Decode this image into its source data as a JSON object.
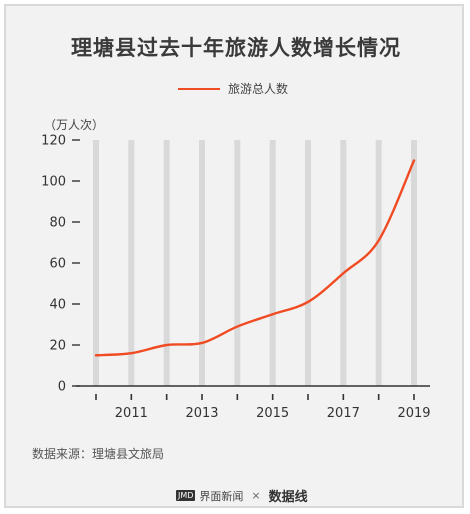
{
  "title": "理塘县过去十年旅游人数增长情况",
  "unit_label": "（万人次）",
  "source": "数据来源：理塘县文旅局",
  "footer": {
    "brand_icon": "JMD",
    "brand_name": "界面新闻",
    "separator": "×",
    "partner": "数据线"
  },
  "colors": {
    "line": "#f04b23",
    "column": "#d9d9d9",
    "axis": "#333333"
  },
  "chart_data": {
    "type": "line",
    "title": "理塘县过去十年旅游人数增长情况",
    "ylabel": "（万人次）",
    "xlabel": "",
    "ylim": [
      0,
      120
    ],
    "y_ticks": [
      0,
      20,
      40,
      60,
      80,
      100,
      120
    ],
    "x_range": [
      2010,
      2019
    ],
    "x_tick_labels": [
      "2011",
      "2013",
      "2015",
      "2017",
      "2019"
    ],
    "x_tick_values": [
      2011,
      2013,
      2015,
      2017,
      2019
    ],
    "legend_position": "top-center",
    "grid": false,
    "series": [
      {
        "name": "旅游总人数",
        "x": [
          2010,
          2011,
          2012,
          2013,
          2014,
          2015,
          2016,
          2017,
          2018,
          2019
        ],
        "values": [
          15,
          16,
          20,
          21,
          29,
          35,
          41,
          55,
          71,
          110
        ]
      }
    ]
  }
}
